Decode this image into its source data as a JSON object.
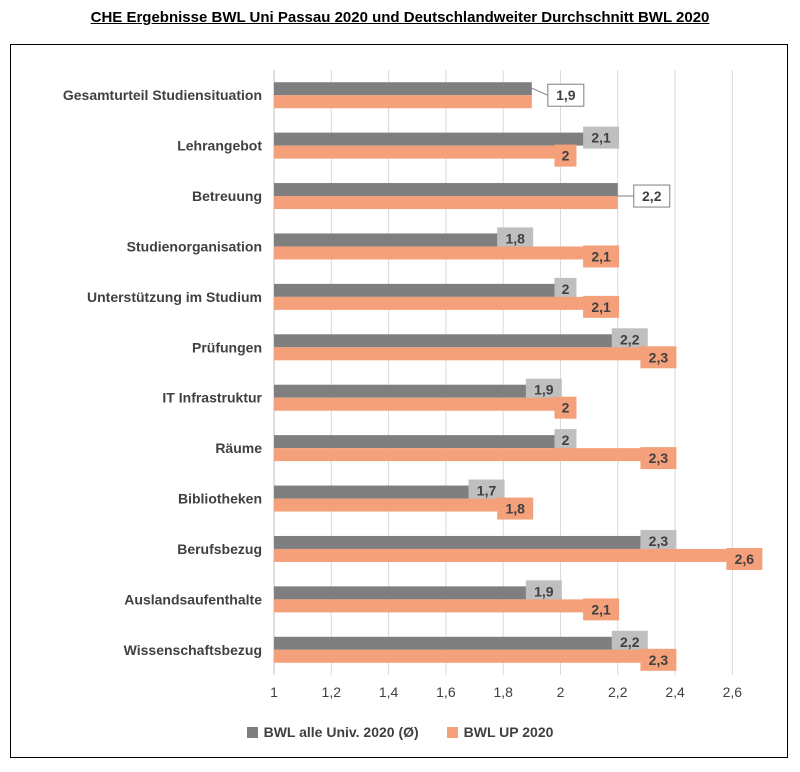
{
  "title": "CHE Ergebnisse BWL Uni Passau 2020 und Deutschlandweiter Durchschnitt BWL 2020",
  "colors": {
    "series1": "#7f7f7f",
    "series2": "#f4a07a",
    "label1_bg": "#bfbfbf",
    "label2_bg": "#f4a07a",
    "grid": "#d9d9d9"
  },
  "chart_data": {
    "type": "bar",
    "orientation": "horizontal",
    "categories": [
      "Gesamturteil Studiensituation",
      "Lehrangebot",
      "Betreuung",
      "Studienorganisation",
      "Unterstützung im Studium",
      "Prüfungen",
      "IT Infrastruktur",
      "Räume",
      "Bibliotheken",
      "Berufsbezug",
      "Auslandsaufenthalte",
      "Wissenschaftsbezug"
    ],
    "series": [
      {
        "name": "BWL alle Univ. 2020 (Ø)",
        "values": [
          1.9,
          2.1,
          2.2,
          1.8,
          2.0,
          2.2,
          1.9,
          2.0,
          1.7,
          2.3,
          1.9,
          2.2
        ]
      },
      {
        "name": "BWL UP 2020",
        "values": [
          1.9,
          2.0,
          2.2,
          2.1,
          2.1,
          2.3,
          2.0,
          2.3,
          1.8,
          2.6,
          2.1,
          2.3
        ]
      }
    ],
    "data_labels": [
      [
        "1,9",
        "2,1",
        "2,2",
        "1,8",
        "2",
        "2,2",
        "1,9",
        "2",
        "1,7",
        "2,3",
        "1,9",
        "2,2"
      ],
      [
        "",
        "2",
        "",
        "2,1",
        "2,1",
        "2,3",
        "2",
        "2,3",
        "1,8",
        "2,6",
        "2,1",
        "2,3"
      ]
    ],
    "xlim": [
      1,
      2.7
    ],
    "xticks": [
      1,
      1.2,
      1.4,
      1.6,
      1.8,
      2,
      2.2,
      2.4,
      2.6
    ],
    "xtick_labels": [
      "1",
      "1,2",
      "1,4",
      "1,6",
      "1,8",
      "2",
      "2,2",
      "2,4",
      "2,6"
    ],
    "grid": true,
    "legend_position": "bottom"
  }
}
